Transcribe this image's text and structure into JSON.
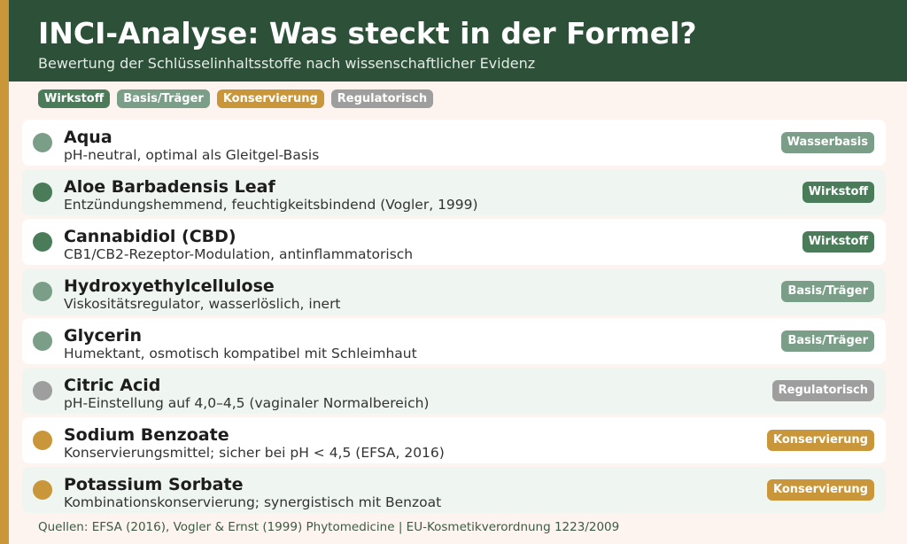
{
  "header": {
    "title": "INCI-Analyse: Was steckt in der Formel?",
    "subtitle": "Bewertung der Schlüsselinhaltsstoffe nach wissenschaftlicher Evidenz"
  },
  "colors": {
    "wirkstoff": "#4a7c59",
    "basis": "#7a9e87",
    "konservierung": "#c9963a",
    "regulatorisch": "#9e9e9e",
    "header": "#2d5038",
    "accent": "#c9963a"
  },
  "legend": [
    {
      "label": "Wirkstoff",
      "type": "wirkstoff"
    },
    {
      "label": "Basis/Träger",
      "type": "basis"
    },
    {
      "label": "Konservierung",
      "type": "konservierung"
    },
    {
      "label": "Regulatorisch",
      "type": "regulatorisch"
    }
  ],
  "ingredients": [
    {
      "name": "Aqua",
      "desc": "pH-neutral, optimal als Gleitgel-Basis",
      "badge": "Wasserbasis",
      "type": "basis"
    },
    {
      "name": "Aloe Barbadensis Leaf",
      "desc": "Entzündungshemmend, feuchtigkeitsbindend (Vogler, 1999)",
      "badge": "Wirkstoff",
      "type": "wirkstoff"
    },
    {
      "name": "Cannabidiol (CBD)",
      "desc": "CB1/CB2-Rezeptor-Modulation, antinflammatorisch",
      "badge": "Wirkstoff",
      "type": "wirkstoff"
    },
    {
      "name": "Hydroxyethylcellulose",
      "desc": "Viskositätsregulator, wasserlöslich, inert",
      "badge": "Basis/Träger",
      "type": "basis"
    },
    {
      "name": "Glycerin",
      "desc": "Humektant, osmotisch kompatibel mit Schleimhaut",
      "badge": "Basis/Träger",
      "type": "basis"
    },
    {
      "name": "Citric Acid",
      "desc": "pH-Einstellung auf 4,0–4,5 (vaginaler Normalbereich)",
      "badge": "Regulatorisch",
      "type": "regulatorisch"
    },
    {
      "name": "Sodium Benzoate",
      "desc": "Konservierungsmittel; sicher bei pH < 4,5 (EFSA, 2016)",
      "badge": "Konservierung",
      "type": "konservierung"
    },
    {
      "name": "Potassium Sorbate",
      "desc": "Kombinationskonservierung; synergistisch mit Benzoat",
      "badge": "Konservierung",
      "type": "konservierung"
    }
  ],
  "footer": "Quellen: EFSA (2016), Vogler & Ernst (1999) Phytomedicine | EU-Kosmetikverordnung 1223/2009"
}
